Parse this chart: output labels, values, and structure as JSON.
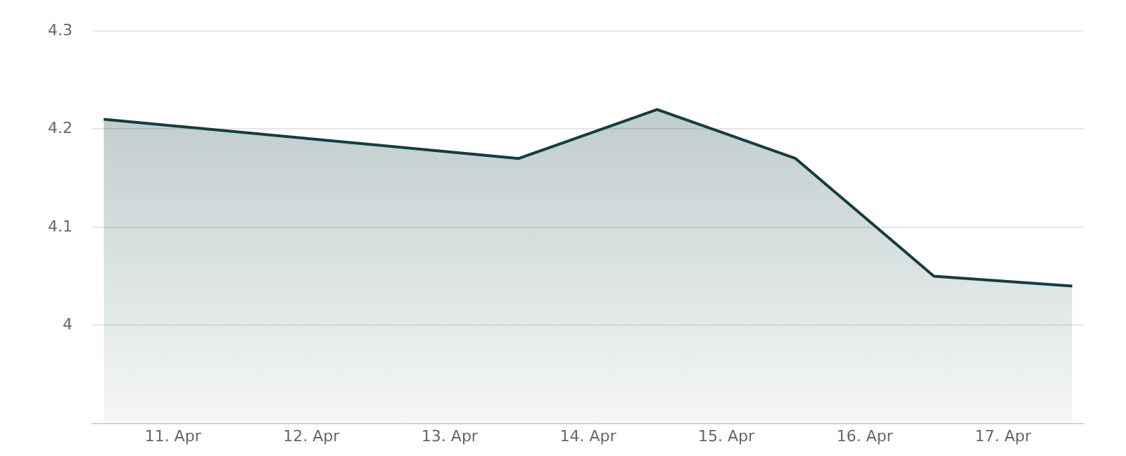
{
  "chart_data": {
    "type": "area",
    "x": [
      "--04-10T12:00",
      "--04-13T12:00",
      "--04-14T12:00",
      "--04-15T12:00",
      "--04-16T12:00",
      "--04-17T12:00"
    ],
    "series": [
      {
        "color": "#113f3c",
        "values": [
          4.21,
          4.17,
          4.22,
          4.17,
          4.05,
          4.04
        ]
      }
    ],
    "xlim": [
      "--04-10T10:00",
      "--04-17T14:00"
    ],
    "xticks": [
      {
        "value": "--04-11",
        "label": "11. Apr"
      },
      {
        "value": "--04-12",
        "label": "12. Apr"
      },
      {
        "value": "--04-13",
        "label": "13. Apr"
      },
      {
        "value": "--04-14",
        "label": "14. Apr"
      },
      {
        "value": "--04-15",
        "label": "15. Apr"
      },
      {
        "value": "--04-16",
        "label": "16. Apr"
      },
      {
        "value": "--04-17",
        "label": "17. Apr"
      }
    ],
    "ylim": [
      3.9,
      4.3
    ],
    "yticks": [
      {
        "value": 4,
        "label": "4"
      },
      4.1,
      4.2,
      4.3
    ],
    "grid": "y",
    "legend": false,
    "marker": "none",
    "line_style": "solid"
  }
}
